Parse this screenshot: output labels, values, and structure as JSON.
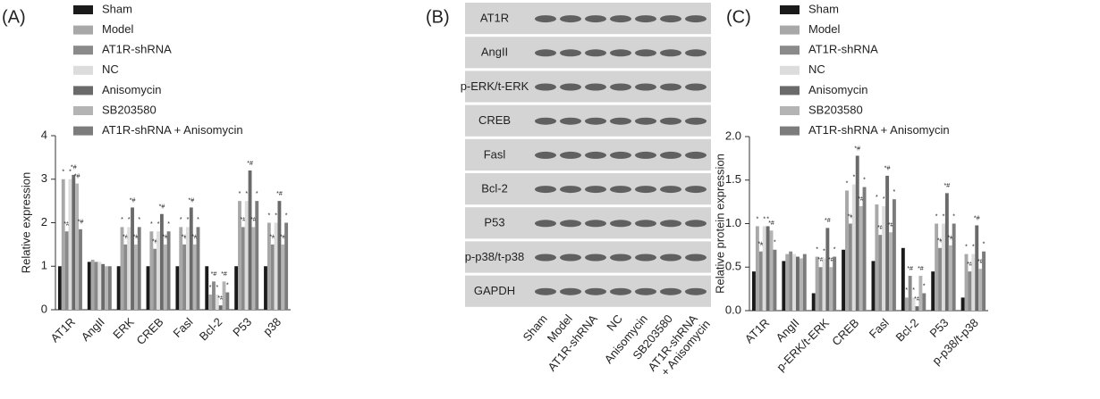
{
  "chart_data": [
    {
      "type": "bar",
      "panel": "(A)",
      "y_label": "Relative expression",
      "categories": [
        "AT1R",
        "AngII",
        "ERK",
        "CREB",
        "Fasl",
        "Bcl-2",
        "P53",
        "p38"
      ],
      "series": [
        {
          "name": "Sham",
          "color": "#1a1a1a",
          "values": [
            1.0,
            1.1,
            1.0,
            1.0,
            1.0,
            1.0,
            1.0,
            1.0
          ]
        },
        {
          "name": "Model",
          "color": "#a8a8a8",
          "values": [
            3.0,
            1.15,
            1.9,
            1.8,
            1.9,
            0.35,
            2.5,
            2.0
          ],
          "annotations": [
            "*",
            null,
            "*",
            "*",
            "*",
            "*",
            "*",
            "*"
          ]
        },
        {
          "name": "AT1R-shRNA",
          "color": "#8a8a8a",
          "values": [
            1.8,
            1.1,
            1.5,
            1.4,
            1.5,
            0.65,
            1.9,
            1.5
          ],
          "annotations": [
            "*#",
            null,
            "*#",
            "*#",
            "*#",
            "*#",
            "*#",
            "*#"
          ]
        },
        {
          "name": "NC",
          "color": "#dcdcdc",
          "values": [
            3.0,
            1.1,
            1.9,
            1.8,
            1.9,
            0.35,
            2.5,
            2.0
          ],
          "annotations": [
            "*",
            null,
            "*",
            "*",
            "*",
            "*",
            "*",
            "*"
          ]
        },
        {
          "name": "Anisomycin",
          "color": "#6a6a6a",
          "values": [
            3.1,
            1.05,
            2.35,
            2.2,
            2.35,
            0.1,
            3.2,
            2.5
          ],
          "annotations": [
            "*#",
            null,
            "*#",
            "*#",
            "*#",
            "*#",
            "*#",
            "*#"
          ]
        },
        {
          "name": "SB203580",
          "color": "#b4b4b4",
          "values": [
            2.9,
            1.0,
            1.5,
            1.5,
            1.5,
            0.65,
            1.9,
            1.5
          ],
          "annotations": [
            "*#",
            null,
            "*#",
            "*#",
            "*#",
            "*#",
            "*#",
            "*#"
          ]
        },
        {
          "name": "AT1R-shRNA + Anisomycin",
          "color": "#7c7c7c",
          "values": [
            1.85,
            1.0,
            1.9,
            1.8,
            1.9,
            0.4,
            2.5,
            2.0
          ],
          "annotations": [
            "*#",
            null,
            "*",
            "*",
            "*",
            "*",
            "*",
            "*"
          ]
        }
      ],
      "ylim": [
        0,
        4
      ],
      "yticks": [
        0,
        1,
        2,
        3,
        4
      ]
    },
    {
      "type": "bar",
      "panel": "(C)",
      "y_label": "Relative protein expression",
      "categories": [
        "AT1R",
        "AngII",
        "p-ERK/t-ERK",
        "CREB",
        "Fasl",
        "Bcl-2",
        "P53",
        "p-p38/t-p38"
      ],
      "series": [
        {
          "name": "Sham",
          "color": "#1a1a1a",
          "values": [
            0.45,
            0.57,
            0.2,
            0.7,
            0.57,
            0.72,
            0.45,
            0.15
          ]
        },
        {
          "name": "Model",
          "color": "#a8a8a8",
          "values": [
            0.97,
            0.65,
            0.62,
            1.38,
            1.22,
            0.15,
            1.0,
            0.65
          ],
          "annotations": [
            "*",
            null,
            "*",
            "*",
            "*",
            "*",
            "*",
            "*"
          ]
        },
        {
          "name": "AT1R-shRNA",
          "color": "#8a8a8a",
          "values": [
            0.68,
            0.68,
            0.5,
            1.0,
            0.87,
            0.4,
            0.72,
            0.45
          ],
          "annotations": [
            "*#",
            null,
            "*#",
            "*#",
            "*#",
            "*#",
            "*#",
            "*#"
          ]
        },
        {
          "name": "NC",
          "color": "#dcdcdc",
          "values": [
            0.97,
            0.65,
            0.6,
            1.45,
            1.2,
            0.15,
            1.0,
            0.65
          ],
          "annotations": [
            "*",
            null,
            "*",
            "*",
            "*",
            "*",
            "*",
            "*"
          ]
        },
        {
          "name": "Anisomycin",
          "color": "#6a6a6a",
          "values": [
            0.97,
            0.62,
            0.95,
            1.78,
            1.55,
            0.05,
            1.35,
            0.98
          ],
          "annotations": [
            "*",
            null,
            "*#",
            "*#",
            "*#",
            "*#",
            "*#",
            "*#"
          ]
        },
        {
          "name": "SB203580",
          "color": "#b4b4b4",
          "values": [
            0.92,
            0.6,
            0.5,
            1.2,
            0.9,
            0.4,
            0.75,
            0.48
          ],
          "annotations": [
            "*#",
            null,
            "*#",
            "*#",
            "*#",
            "*#",
            "*#",
            "*#"
          ]
        },
        {
          "name": "AT1R-shRNA + Anisomycin",
          "color": "#7c7c7c",
          "values": [
            0.7,
            0.65,
            0.62,
            1.42,
            1.28,
            0.2,
            1.0,
            0.68
          ],
          "annotations": [
            "*",
            null,
            "*",
            "*",
            "*",
            "*",
            "*",
            "*"
          ]
        }
      ],
      "ylim": [
        0,
        2
      ],
      "yticks": [
        {
          "value": 0,
          "label": "0.0"
        },
        0.5,
        {
          "value": 1,
          "label": "1.0"
        },
        1.5,
        {
          "value": 2,
          "label": "2.0"
        }
      ]
    }
  ],
  "blot": {
    "panel": "(B)",
    "rows": [
      "AT1R",
      "AngII",
      "p-ERK/t-ERK",
      "CREB",
      "Fasl",
      "Bcl-2",
      "P53",
      "p-p38/t-p38",
      "GAPDH"
    ],
    "columns": [
      [
        "Sham"
      ],
      [
        "Model"
      ],
      [
        "AT1R-shRNA"
      ],
      [
        "NC"
      ],
      [
        "Anisomycin"
      ],
      [
        "SB203580"
      ],
      [
        "AT1R-shRNA",
        "+ Anisomycin"
      ]
    ]
  }
}
